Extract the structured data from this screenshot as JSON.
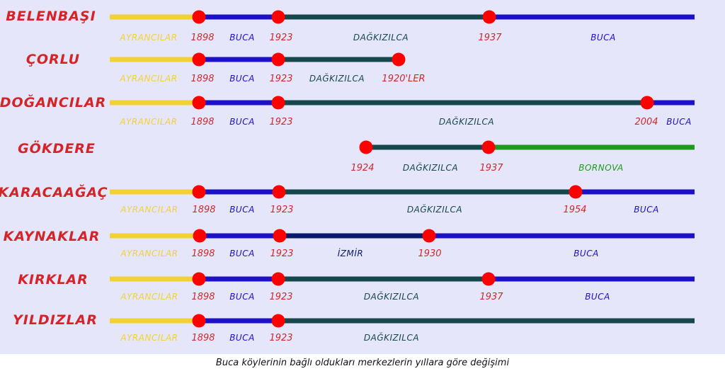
{
  "caption": "Buca köylerinin bağlı oldukları merkezlerin yıllara göre değişimi",
  "colors": {
    "background": "#e6e6fb",
    "village_name": "#d42428",
    "dot": "#ff0000",
    "year": "#cc2a2a",
    "ayrancilar": "#f2d233",
    "buca": "#1c10c8",
    "dagkizilca": "#15474d",
    "izmir": "#0a1a6e",
    "bornova": "#1f9a1f"
  },
  "rows": [
    {
      "village": "BELENBAŞI",
      "segments": [
        {
          "from": 0,
          "to": 1898,
          "center": "AYRANCILAR",
          "color": "ayrancilar"
        },
        {
          "from": 1898,
          "to": 1923,
          "center": "BUCA",
          "color": "buca"
        },
        {
          "from": 1923,
          "to": 1937,
          "center": "DAĞKIZILCA",
          "color": "dagkizilca"
        },
        {
          "from": 1937,
          "to": 9999,
          "center": "BUCA",
          "color": "buca"
        }
      ],
      "markers": [
        "1898",
        "1923",
        "1937"
      ]
    },
    {
      "village": "ÇORLU",
      "segments": [
        {
          "from": 0,
          "to": 1898,
          "center": "AYRANCILAR",
          "color": "ayrancilar"
        },
        {
          "from": 1898,
          "to": 1923,
          "center": "BUCA",
          "color": "buca"
        },
        {
          "from": 1923,
          "to": 1920,
          "center": "DAĞKIZILCA",
          "color": "dagkizilca"
        }
      ],
      "markers": [
        "1898",
        "1923",
        "1920'LER"
      ]
    },
    {
      "village": "DOĞANCILAR",
      "segments": [
        {
          "from": 0,
          "to": 1898,
          "center": "AYRANCILAR",
          "color": "ayrancilar"
        },
        {
          "from": 1898,
          "to": 1923,
          "center": "BUCA",
          "color": "buca"
        },
        {
          "from": 1923,
          "to": 2004,
          "center": "DAĞKIZILCA",
          "color": "dagkizilca"
        },
        {
          "from": 2004,
          "to": 9999,
          "center": "BUCA",
          "color": "buca"
        }
      ],
      "markers": [
        "1898",
        "1923",
        "2004"
      ]
    },
    {
      "village": "GÖKDERE",
      "segments": [
        {
          "from": 1924,
          "to": 1937,
          "center": "DAĞKIZILCA",
          "color": "dagkizilca"
        },
        {
          "from": 1937,
          "to": 9999,
          "center": "BORNOVA",
          "color": "bornova"
        }
      ],
      "markers": [
        "1924",
        "1937"
      ]
    },
    {
      "village": "KARACAAĞAÇ",
      "segments": [
        {
          "from": 0,
          "to": 1898,
          "center": "AYRANCILAR",
          "color": "ayrancilar"
        },
        {
          "from": 1898,
          "to": 1923,
          "center": "BUCA",
          "color": "buca"
        },
        {
          "from": 1923,
          "to": 1954,
          "center": "DAĞKIZILCA",
          "color": "dagkizilca"
        },
        {
          "from": 1954,
          "to": 9999,
          "center": "BUCA",
          "color": "buca"
        }
      ],
      "markers": [
        "1898",
        "1923",
        "1954"
      ]
    },
    {
      "village": "KAYNAKLAR",
      "segments": [
        {
          "from": 0,
          "to": 1898,
          "center": "AYRANCILAR",
          "color": "ayrancilar"
        },
        {
          "from": 1898,
          "to": 1923,
          "center": "BUCA",
          "color": "buca"
        },
        {
          "from": 1923,
          "to": 1930,
          "center": "İZMİR",
          "color": "izmir"
        },
        {
          "from": 1930,
          "to": 9999,
          "center": "BUCA",
          "color": "buca"
        }
      ],
      "markers": [
        "1898",
        "1923",
        "1930"
      ]
    },
    {
      "village": "KIRKLAR",
      "segments": [
        {
          "from": 0,
          "to": 1898,
          "center": "AYRANCILAR",
          "color": "ayrancilar"
        },
        {
          "from": 1898,
          "to": 1923,
          "center": "BUCA",
          "color": "buca"
        },
        {
          "from": 1923,
          "to": 1937,
          "center": "DAĞKIZILCA",
          "color": "dagkizilca"
        },
        {
          "from": 1937,
          "to": 9999,
          "center": "BUCA",
          "color": "buca"
        }
      ],
      "markers": [
        "1898",
        "1923",
        "1937"
      ]
    },
    {
      "village": "YILDIZLAR",
      "segments": [
        {
          "from": 0,
          "to": 1898,
          "center": "AYRANCILAR",
          "color": "ayrancilar"
        },
        {
          "from": 1898,
          "to": 1923,
          "center": "BUCA",
          "color": "buca"
        },
        {
          "from": 1923,
          "to": 9999,
          "center": "DAĞKIZILCA",
          "color": "dagkizilca"
        }
      ],
      "markers": [
        "1898",
        "1923"
      ]
    }
  ]
}
